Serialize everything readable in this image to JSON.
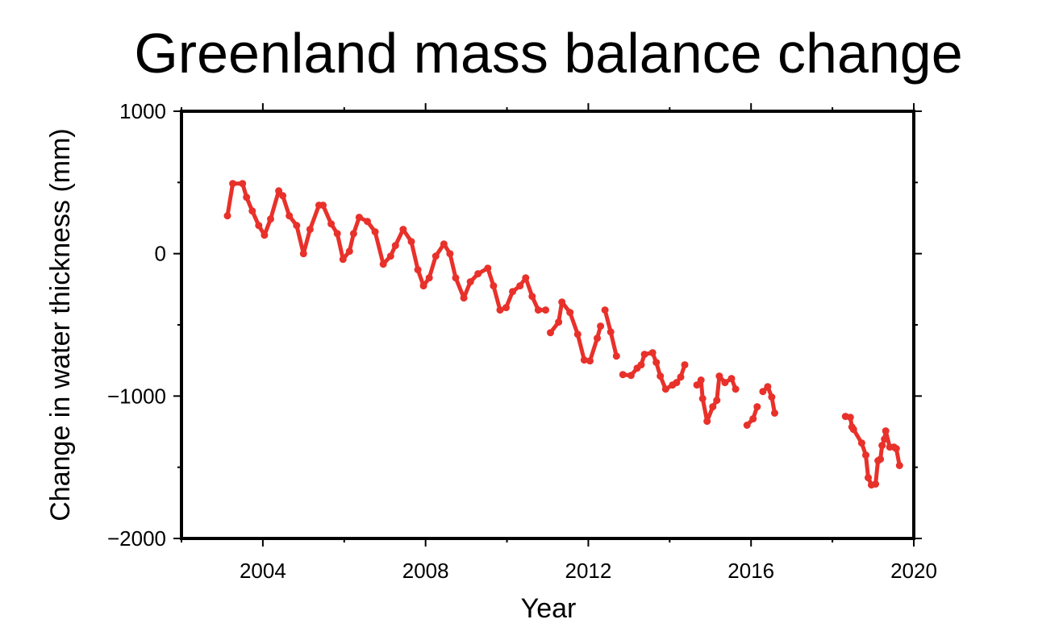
{
  "chart_data": {
    "type": "line",
    "title": "Greenland mass balance change",
    "xlabel": "Year",
    "ylabel": "Change in water thickness (mm)",
    "xlim": [
      2002,
      2020
    ],
    "ylim": [
      -2000,
      1000
    ],
    "x_ticks": [
      2004,
      2008,
      2012,
      2016,
      2020
    ],
    "x_tick_labels": [
      "2004",
      "2008",
      "2012",
      "2016",
      "2020"
    ],
    "x_minor_ticks": [
      2002,
      2006,
      2010,
      2014,
      2018
    ],
    "y_ticks": [
      1000,
      0,
      -1000,
      -2000
    ],
    "y_tick_labels": [
      "1000",
      "0",
      "−1000",
      "−2000"
    ],
    "y_minor_ticks": [
      500,
      -500,
      -1500
    ],
    "grid": false,
    "markers": true,
    "color": "#e8312a",
    "series": [
      {
        "segments": [
          [
            [
              2003.13,
              266
            ],
            [
              2003.26,
              492
            ],
            [
              2003.5,
              492
            ],
            [
              2003.6,
              396
            ],
            [
              2003.74,
              300
            ],
            [
              2003.9,
              198
            ],
            [
              2004.04,
              130
            ],
            [
              2004.19,
              243
            ],
            [
              2004.39,
              441
            ],
            [
              2004.49,
              407
            ],
            [
              2004.65,
              266
            ],
            [
              2004.83,
              198
            ],
            [
              2005.0,
              0
            ],
            [
              2005.16,
              170
            ],
            [
              2005.38,
              340
            ],
            [
              2005.48,
              340
            ],
            [
              2005.68,
              209
            ],
            [
              2005.83,
              141
            ],
            [
              2005.97,
              -40
            ],
            [
              2006.13,
              17
            ],
            [
              2006.23,
              141
            ],
            [
              2006.37,
              255
            ],
            [
              2006.57,
              226
            ],
            [
              2006.76,
              153
            ],
            [
              2006.96,
              -74
            ],
            [
              2007.14,
              -17
            ],
            [
              2007.26,
              57
            ],
            [
              2007.45,
              170
            ],
            [
              2007.65,
              85
            ],
            [
              2007.81,
              -113
            ],
            [
              2007.95,
              -226
            ],
            [
              2008.09,
              -170
            ],
            [
              2008.25,
              -17
            ],
            [
              2008.45,
              68
            ],
            [
              2008.6,
              0
            ],
            [
              2008.74,
              -170
            ],
            [
              2008.94,
              -311
            ],
            [
              2009.1,
              -198
            ],
            [
              2009.29,
              -141
            ],
            [
              2009.53,
              -102
            ],
            [
              2009.67,
              -226
            ],
            [
              2009.83,
              -396
            ],
            [
              2009.98,
              -379
            ],
            [
              2010.14,
              -266
            ],
            [
              2010.32,
              -226
            ],
            [
              2010.46,
              -170
            ],
            [
              2010.62,
              -300
            ],
            [
              2010.77,
              -396
            ],
            [
              2010.95,
              -396
            ]
          ],
          [
            [
              2011.07,
              -555
            ],
            [
              2011.27,
              -481
            ],
            [
              2011.35,
              -340
            ],
            [
              2011.55,
              -413
            ],
            [
              2011.74,
              -566
            ],
            [
              2011.9,
              -747
            ],
            [
              2012.04,
              -753
            ],
            [
              2012.22,
              -594
            ],
            [
              2012.3,
              -509
            ]
          ],
          [
            [
              2012.41,
              -396
            ],
            [
              2012.55,
              -550
            ],
            [
              2012.69,
              -719
            ]
          ],
          [
            [
              2012.85,
              -849
            ],
            [
              2013.05,
              -855
            ],
            [
              2013.2,
              -804
            ],
            [
              2013.3,
              -781
            ],
            [
              2013.38,
              -707
            ],
            [
              2013.58,
              -696
            ],
            [
              2013.67,
              -764
            ],
            [
              2013.77,
              -860
            ],
            [
              2013.9,
              -951
            ],
            [
              2014.07,
              -922
            ],
            [
              2014.17,
              -905
            ],
            [
              2014.27,
              -866
            ],
            [
              2014.37,
              -781
            ]
          ],
          [
            [
              2014.67,
              -922
            ],
            [
              2014.77,
              -888
            ],
            [
              2014.81,
              -1018
            ],
            [
              2014.92,
              -1177
            ],
            [
              2015.06,
              -1075
            ],
            [
              2015.16,
              -1030
            ],
            [
              2015.22,
              -860
            ],
            [
              2015.36,
              -905
            ],
            [
              2015.52,
              -877
            ],
            [
              2015.62,
              -951
            ]
          ],
          [
            [
              2015.9,
              -1205
            ],
            [
              2016.05,
              -1160
            ],
            [
              2016.15,
              -1075
            ]
          ],
          [
            [
              2016.29,
              -968
            ],
            [
              2016.41,
              -934
            ],
            [
              2016.51,
              -1007
            ],
            [
              2016.58,
              -1120
            ]
          ],
          [
            [
              2018.32,
              -1143
            ],
            [
              2018.44,
              -1149
            ],
            [
              2018.48,
              -1217
            ],
            [
              2018.52,
              -1234
            ],
            [
              2018.72,
              -1330
            ],
            [
              2018.82,
              -1415
            ],
            [
              2018.88,
              -1573
            ],
            [
              2018.96,
              -1624
            ],
            [
              2019.06,
              -1618
            ],
            [
              2019.12,
              -1454
            ],
            [
              2019.18,
              -1443
            ],
            [
              2019.22,
              -1347
            ],
            [
              2019.28,
              -1302
            ],
            [
              2019.31,
              -1245
            ],
            [
              2019.41,
              -1358
            ],
            [
              2019.51,
              -1358
            ],
            [
              2019.57,
              -1369
            ],
            [
              2019.65,
              -1488
            ]
          ]
        ]
      }
    ]
  }
}
